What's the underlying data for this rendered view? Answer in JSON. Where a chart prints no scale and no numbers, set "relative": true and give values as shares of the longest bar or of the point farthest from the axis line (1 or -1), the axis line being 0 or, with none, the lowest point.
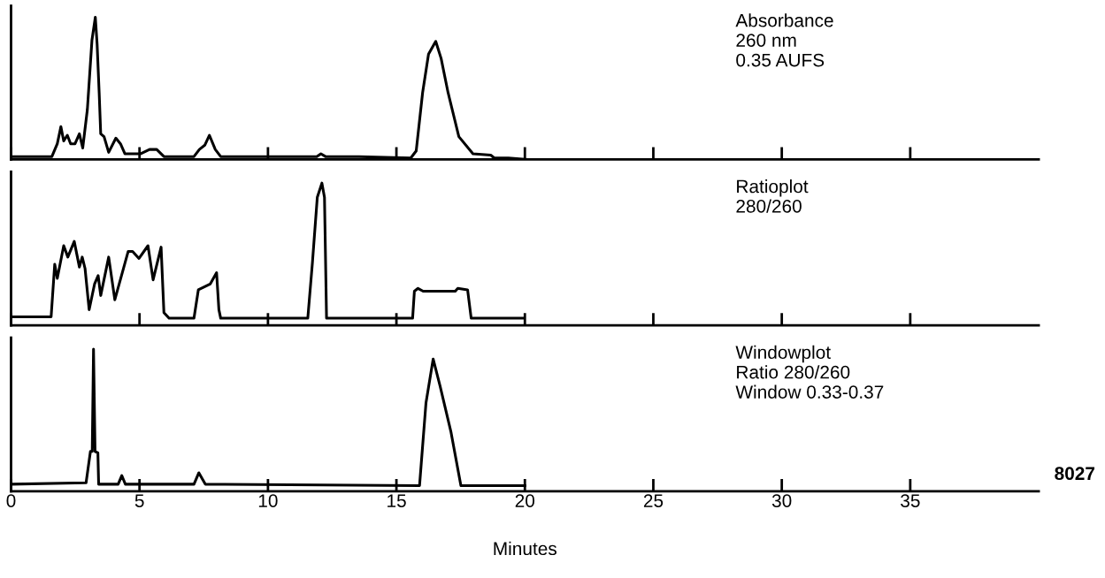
{
  "chart_data": [
    {
      "type": "line",
      "relative": true,
      "xlim": [
        0,
        40
      ],
      "xticks": [
        0,
        5,
        10,
        15,
        20,
        25,
        30,
        35
      ],
      "tick_labels": false,
      "annotations": [
        "Absorbance\n260 nm\n0.35 AUFS"
      ],
      "series": [
        {
          "color": "#000000",
          "x": [
            0.0,
            1.59,
            1.8,
            1.94,
            2.05,
            2.19,
            2.32,
            2.49,
            2.66,
            2.79,
            2.97,
            3.15,
            3.28,
            3.35,
            3.43,
            3.49,
            3.62,
            3.8,
            4.08,
            4.26,
            4.43,
            5.05,
            5.39,
            5.67,
            5.95,
            7.12,
            7.33,
            7.54,
            7.72,
            7.95,
            8.16,
            9.82,
            11.9,
            12.06,
            12.24,
            13.28,
            13.42,
            13.55,
            15.56,
            15.77,
            16.02,
            16.25,
            16.53,
            16.74,
            17.01,
            17.43,
            17.98,
            18.67,
            18.81,
            19.36,
            20.06
          ],
          "values": [
            0.02,
            0.02,
            0.11,
            0.23,
            0.13,
            0.17,
            0.11,
            0.11,
            0.18,
            0.08,
            0.35,
            0.84,
            1.0,
            0.81,
            0.47,
            0.18,
            0.16,
            0.05,
            0.15,
            0.11,
            0.04,
            0.04,
            0.07,
            0.07,
            0.02,
            0.02,
            0.07,
            0.1,
            0.17,
            0.07,
            0.02,
            0.02,
            0.02,
            0.04,
            0.02,
            0.02,
            0.02,
            0.02,
            0.01,
            0.06,
            0.47,
            0.74,
            0.83,
            0.71,
            0.47,
            0.16,
            0.04,
            0.03,
            0.01,
            0.01,
            0.0
          ]
        }
      ]
    },
    {
      "type": "line",
      "relative": true,
      "xlim": [
        0,
        40
      ],
      "xticks": [
        0,
        5,
        10,
        15,
        20,
        25,
        30,
        35
      ],
      "tick_labels": false,
      "annotations": [
        "Ratioplot\n280/260"
      ],
      "series": [
        {
          "color": "#000000",
          "x": [
            0.0,
            1.56,
            1.7,
            1.8,
            2.05,
            2.21,
            2.46,
            2.66,
            2.77,
            2.88,
            3.04,
            3.25,
            3.39,
            3.49,
            3.8,
            4.04,
            4.56,
            4.73,
            4.98,
            5.33,
            5.53,
            5.84,
            5.95,
            6.15,
            7.12,
            7.29,
            7.75,
            8.0,
            8.09,
            8.16,
            11.55,
            11.73,
            11.92,
            12.1,
            12.2,
            12.28,
            15.63,
            15.7,
            15.84,
            16.04,
            17.29,
            17.39,
            17.77,
            17.91,
            19.92
          ],
          "values": [
            0.06,
            0.06,
            0.43,
            0.33,
            0.56,
            0.48,
            0.59,
            0.41,
            0.48,
            0.4,
            0.11,
            0.29,
            0.35,
            0.21,
            0.48,
            0.18,
            0.52,
            0.52,
            0.47,
            0.56,
            0.32,
            0.55,
            0.09,
            0.05,
            0.05,
            0.25,
            0.29,
            0.37,
            0.11,
            0.05,
            0.05,
            0.44,
            0.9,
            1.0,
            0.9,
            0.05,
            0.05,
            0.24,
            0.26,
            0.24,
            0.24,
            0.26,
            0.25,
            0.05,
            0.05
          ]
        }
      ]
    },
    {
      "type": "line",
      "relative": true,
      "xlim": [
        0,
        40
      ],
      "xticks": [
        0,
        5,
        10,
        15,
        20,
        25,
        30,
        35
      ],
      "tick_labels": "x",
      "xlabel": "Minutes",
      "annotations": [
        "Windowplot\nRatio 280/260\nWindow 0.33-0.37",
        "8027"
      ],
      "series": [
        {
          "color": "#000000",
          "x": [
            0.03,
            2.92,
            3.09,
            3.16,
            3.21,
            3.27,
            3.38,
            3.41,
            4.17,
            4.31,
            4.45,
            7.12,
            7.31,
            7.56,
            15.9,
            16.15,
            16.43,
            16.7,
            17.12,
            17.51,
            20.0
          ],
          "values": [
            0.05,
            0.06,
            0.28,
            0.28,
            1.0,
            0.28,
            0.27,
            0.05,
            0.05,
            0.11,
            0.05,
            0.05,
            0.13,
            0.05,
            0.04,
            0.62,
            0.93,
            0.74,
            0.42,
            0.04,
            0.04
          ]
        }
      ]
    }
  ]
}
